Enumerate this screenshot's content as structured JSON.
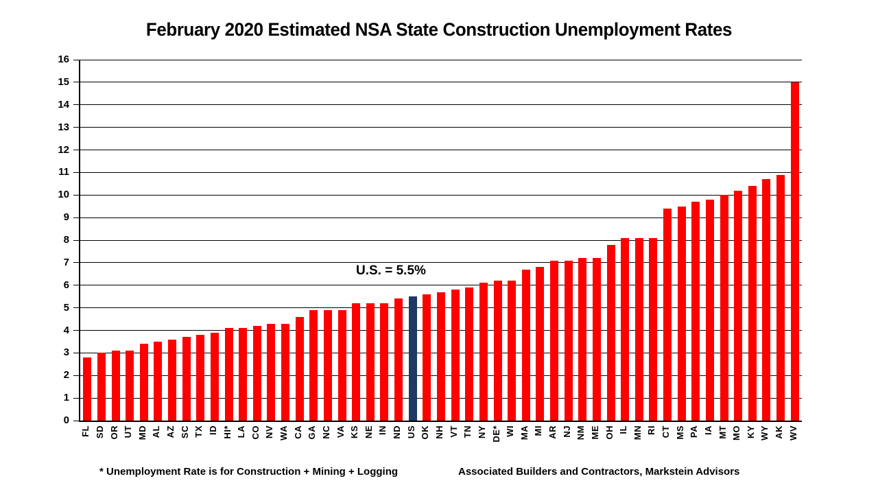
{
  "title": "February 2020 Estimated NSA State Construction Unemployment Rates",
  "footnotes": {
    "left": "* Unemployment Rate is for Construction + Mining + Logging",
    "right": "Associated Builders and Contractors, Markstein Advisors"
  },
  "chart_data": {
    "type": "bar",
    "title": "February 2020 Estimated NSA State Construction Unemployment Rates",
    "categories": [
      "FL",
      "SD",
      "OR",
      "UT",
      "MD",
      "AL",
      "AZ",
      "SC",
      "TX",
      "ID",
      "HI*",
      "LA",
      "CO",
      "NV",
      "WA",
      "CA",
      "GA",
      "NC",
      "VA",
      "KS",
      "NE",
      "IN",
      "ND",
      "US",
      "OK",
      "NH",
      "VT",
      "TN",
      "NY",
      "DE*",
      "WI",
      "MA",
      "MI",
      "AR",
      "NJ",
      "NM",
      "ME",
      "OH",
      "IL",
      "MN",
      "RI",
      "CT",
      "MS",
      "PA",
      "IA",
      "MT",
      "MO",
      "KY",
      "WY",
      "AK",
      "WV"
    ],
    "values": [
      2.8,
      3.0,
      3.1,
      3.1,
      3.4,
      3.5,
      3.6,
      3.7,
      3.8,
      3.9,
      4.1,
      4.1,
      4.2,
      4.3,
      4.3,
      4.6,
      4.9,
      4.9,
      4.9,
      5.2,
      5.2,
      5.2,
      5.4,
      5.5,
      5.6,
      5.7,
      5.8,
      5.9,
      6.1,
      6.2,
      6.2,
      6.7,
      6.8,
      7.1,
      7.1,
      7.2,
      7.2,
      7.8,
      8.1,
      8.1,
      8.1,
      9.4,
      9.5,
      9.7,
      9.8,
      10.0,
      10.2,
      10.4,
      10.7,
      10.9,
      15.0
    ],
    "annotation": "U.S. = 5.5%",
    "highlight_category": "US",
    "bar_color": "#FE0000",
    "highlight_color": "#1F3864",
    "grid": true,
    "legend": "none",
    "xlabel": "",
    "ylabel": "",
    "ylim": [
      0,
      16
    ],
    "ytick_step": 1
  }
}
